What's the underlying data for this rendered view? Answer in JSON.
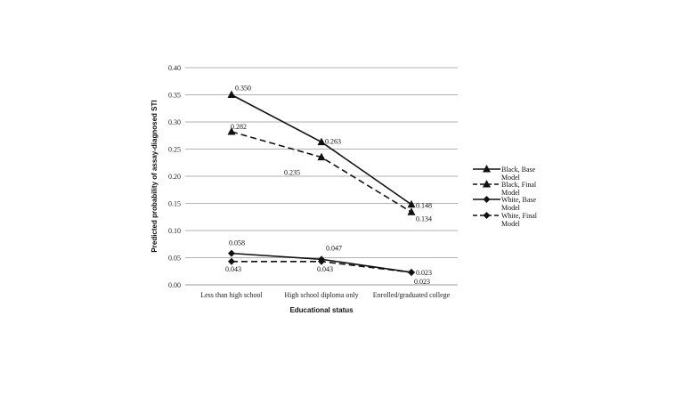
{
  "chart_data": {
    "type": "line",
    "title": "",
    "xlabel": "Educational status",
    "ylabel": "Predicted probability of assay-diagnosed STI",
    "categories": [
      "Less than high school",
      "High school diploma only",
      "Enrolled/graduated college"
    ],
    "ylim": [
      0,
      0.4
    ],
    "yticks": [
      "0.00",
      "0.05",
      "0.10",
      "0.15",
      "0.20",
      "0.25",
      "0.30",
      "0.35",
      "0.40"
    ],
    "grid": true,
    "legend_position": "right",
    "series": [
      {
        "name": "Black, Base Model",
        "legend_lines": [
          "Black, Base",
          "Model"
        ],
        "values": [
          0.35,
          0.263,
          0.148
        ],
        "labels": [
          "0.350",
          "0.263",
          "0.148"
        ],
        "marker": "triangle",
        "dash": "solid"
      },
      {
        "name": "Black, Final Model",
        "legend_lines": [
          "Black, Final",
          "Model"
        ],
        "values": [
          0.282,
          0.235,
          0.134
        ],
        "labels": [
          "0.282",
          "0.235",
          "0.134"
        ],
        "marker": "triangle",
        "dash": "dashed"
      },
      {
        "name": "White, Base Model",
        "legend_lines": [
          "White, Base",
          "Model"
        ],
        "values": [
          0.058,
          0.047,
          0.023
        ],
        "labels": [
          "0.058",
          "0.047",
          "0.023"
        ],
        "marker": "diamond",
        "dash": "solid"
      },
      {
        "name": "White, Final Model",
        "legend_lines": [
          "White, Final",
          "Model"
        ],
        "values": [
          0.043,
          0.043,
          0.023
        ],
        "labels": [
          "0.043",
          "0.043",
          "0.023"
        ],
        "marker": "diamond",
        "dash": "dashed"
      }
    ]
  }
}
